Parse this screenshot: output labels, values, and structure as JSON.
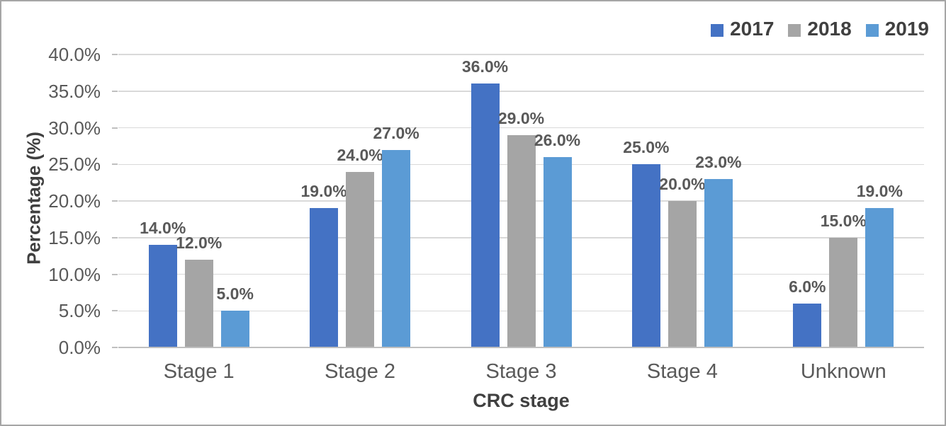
{
  "chart_data": {
    "type": "bar",
    "title": "",
    "xlabel": "CRC stage",
    "ylabel": "Percentage (%)",
    "categories": [
      "Stage 1",
      "Stage 2",
      "Stage 3",
      "Stage 4",
      "Unknown"
    ],
    "series": [
      {
        "name": "2017",
        "color": "#4472C4",
        "values": [
          14,
          19,
          36,
          25,
          6
        ],
        "labels": [
          "14.0%",
          "19.0%",
          "36.0%",
          "25.0%",
          "6.0%"
        ]
      },
      {
        "name": "2018",
        "color": "#A5A5A5",
        "values": [
          12,
          24,
          29,
          20,
          15
        ],
        "labels": [
          "12.0%",
          "24.0%",
          "29.0%",
          "20.0%",
          "15.0%"
        ]
      },
      {
        "name": "2019",
        "color": "#5B9BD5",
        "values": [
          5,
          27,
          26,
          23,
          19
        ],
        "labels": [
          "5.0%",
          "27.0%",
          "26.0%",
          "23.0%",
          "19.0%"
        ]
      }
    ],
    "ylim": [
      0,
      40
    ],
    "ytick_step": 5,
    "ytick_labels": [
      "0.0%",
      "5.0%",
      "10.0%",
      "15.0%",
      "20.0%",
      "25.0%",
      "30.0%",
      "35.0%",
      "40.0%"
    ],
    "grid": true,
    "legend_position": "top-right"
  },
  "colors": {
    "gridline": "#D9D9D9",
    "axis_line": "#BFBFBF",
    "tick_label": "#595959",
    "data_label": "#595959",
    "axis_title": "#404040",
    "legend_text": "#404040",
    "frame_border": "#A6A6A6",
    "background": "#FFFFFF"
  }
}
